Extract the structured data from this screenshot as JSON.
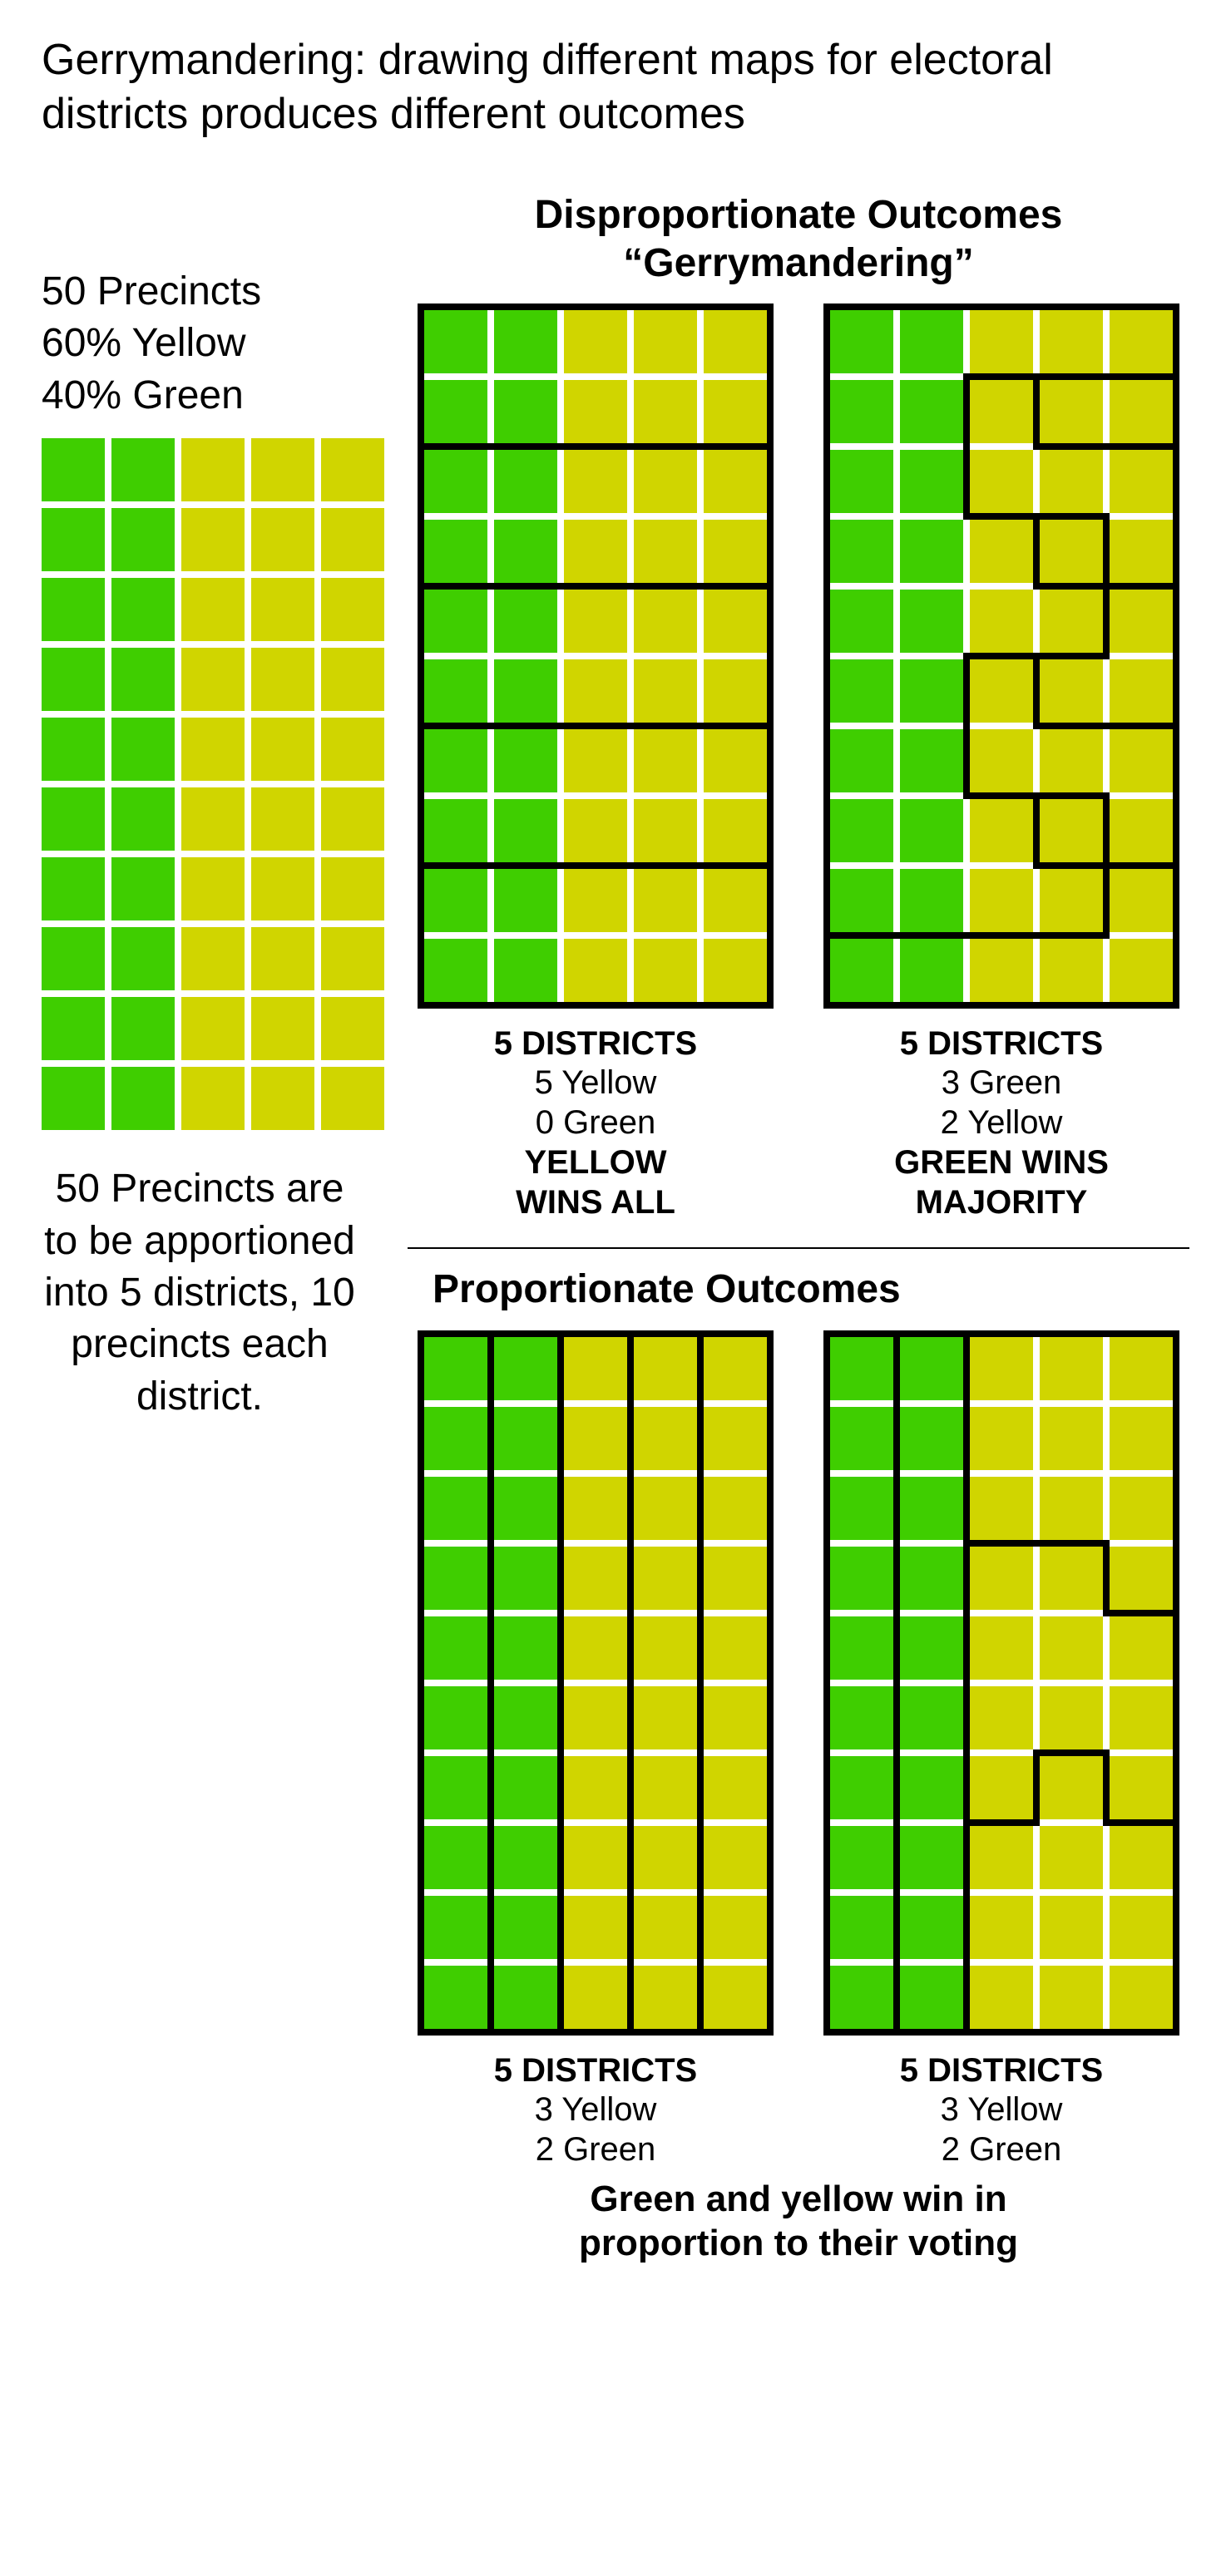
{
  "title": "Gerrymandering: drawing different maps for electoral districts produces different outcomes",
  "colors": {
    "green": "#3fce00",
    "yellow": "#d0d500",
    "gap": "#ffffff",
    "border": "#000000",
    "text": "#000000",
    "background": "#ffffff"
  },
  "grid": {
    "cols": 5,
    "rows": 10,
    "cell_size": 76,
    "gap": 8,
    "border_width": 8,
    "colors": [
      [
        "G",
        "G",
        "Y",
        "Y",
        "Y"
      ],
      [
        "G",
        "G",
        "Y",
        "Y",
        "Y"
      ],
      [
        "G",
        "G",
        "Y",
        "Y",
        "Y"
      ],
      [
        "G",
        "G",
        "Y",
        "Y",
        "Y"
      ],
      [
        "G",
        "G",
        "Y",
        "Y",
        "Y"
      ],
      [
        "G",
        "G",
        "Y",
        "Y",
        "Y"
      ],
      [
        "G",
        "G",
        "Y",
        "Y",
        "Y"
      ],
      [
        "G",
        "G",
        "Y",
        "Y",
        "Y"
      ],
      [
        "G",
        "G",
        "Y",
        "Y",
        "Y"
      ],
      [
        "G",
        "G",
        "Y",
        "Y",
        "Y"
      ]
    ]
  },
  "left": {
    "label1_line1": "50 Precincts",
    "label1_line2": "60% Yellow",
    "label1_line3": "40% Green",
    "label2": "50 Precincts are to be apportioned into 5 districts, 10 precincts each district."
  },
  "disproportionate": {
    "heading_line1": "Disproportionate Outcomes",
    "heading_line2": "“Gerrymandering”",
    "map1": {
      "district_lines": "horizontal_stripes",
      "caption_heading": "5 DISTRICTS",
      "caption_line1": "5 Yellow",
      "caption_line2": "0 Green",
      "caption_bold1": "YELLOW",
      "caption_bold2": "WINS ALL"
    },
    "map2": {
      "district_lines": "gerrymander_green",
      "caption_heading": "5 DISTRICTS",
      "caption_line1": "3 Green",
      "caption_line2": "2 Yellow",
      "caption_bold1": "GREEN WINS",
      "caption_bold2": "MAJORITY"
    }
  },
  "proportionate": {
    "heading": "Proportionate Outcomes",
    "map1": {
      "district_lines": "vertical_stripes",
      "caption_heading": "5 DISTRICTS",
      "caption_line1": "3 Yellow",
      "caption_line2": "2 Green"
    },
    "map2": {
      "district_lines": "staircase",
      "caption_heading": "5 DISTRICTS",
      "caption_line1": "3 Yellow",
      "caption_line2": "2 Green"
    },
    "bottom_line1": "Green and yellow win in",
    "bottom_line2": "proportion to their voting"
  },
  "typography": {
    "title_fontsize": 52,
    "title_weight": 400,
    "heading_fontsize": 48,
    "heading_weight": 700,
    "left_label_fontsize": 48,
    "caption_heading_fontsize": 40,
    "caption_line_fontsize": 40,
    "bottom_caption_fontsize": 44,
    "font_family": "Arial"
  }
}
